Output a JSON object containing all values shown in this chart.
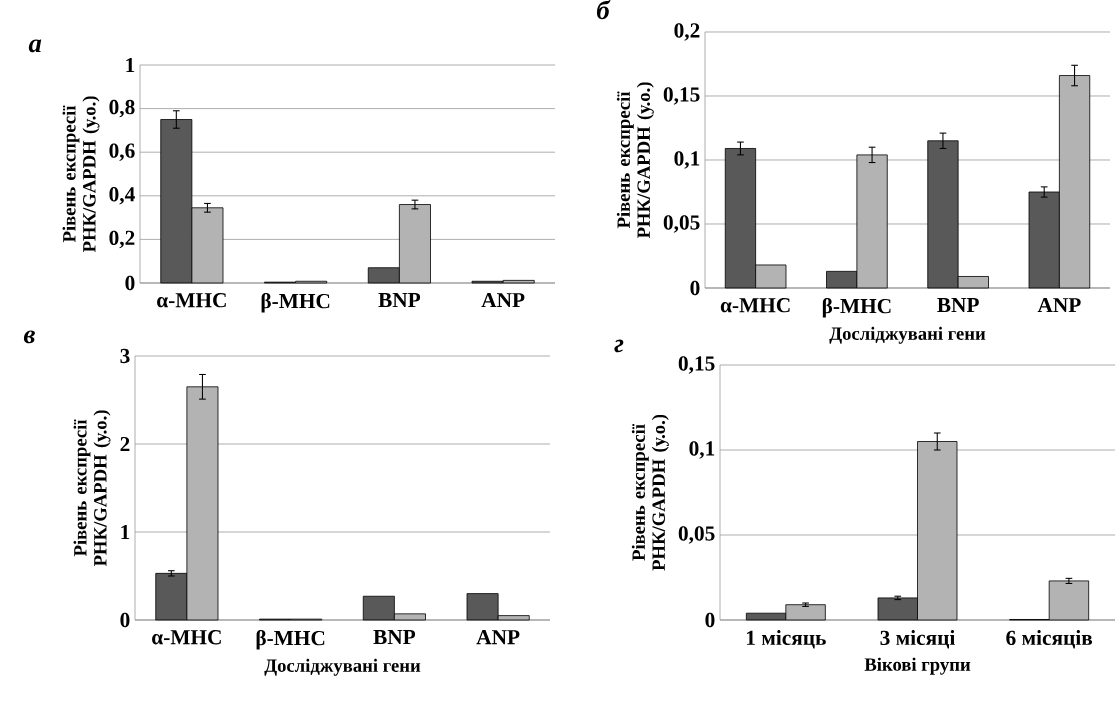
{
  "chart_data": [
    {
      "type": "bar",
      "title": "а",
      "ylabel": "Рівень експресії РНК/GAPDH (у.о.)",
      "categories": [
        "α-MHC",
        "β-MHC",
        "BNP",
        "ANP"
      ],
      "series": [
        {
          "color": "#595959",
          "values": [
            0.75,
            0.004,
            0.07,
            0.008
          ],
          "errors": [
            0.04,
            null,
            null,
            null
          ]
        },
        {
          "color": "#b3b3b3",
          "values": [
            0.345,
            0.008,
            0.36,
            0.012
          ],
          "errors": [
            0.02,
            null,
            0.02,
            null
          ]
        }
      ],
      "ylim": [
        0,
        1
      ],
      "yticks": [
        0,
        {
          "value": 0.2,
          "label": "0,2"
        },
        {
          "value": 0.4,
          "label": "0,4"
        },
        {
          "value": 0.6,
          "label": "0,6"
        },
        {
          "value": 0.8,
          "label": "0,8"
        },
        1
      ],
      "grid": "y"
    },
    {
      "type": "bar",
      "title": "б",
      "ylabel": "Рівень експресії РНК/GAPDH (у.о.)",
      "xlabel": "Досліджувані гени",
      "categories": [
        "α-MHC",
        "β-MHC",
        "BNP",
        "ANP"
      ],
      "series": [
        {
          "color": "#595959",
          "values": [
            0.109,
            0.013,
            0.115,
            0.075
          ],
          "errors": [
            0.005,
            null,
            0.006,
            0.004
          ]
        },
        {
          "color": "#b3b3b3",
          "values": [
            0.018,
            0.104,
            0.009,
            0.166
          ],
          "errors": [
            null,
            0.006,
            null,
            0.008
          ]
        }
      ],
      "ylim": [
        0,
        0.2
      ],
      "yticks": [
        0,
        {
          "value": 0.05,
          "label": "0,05"
        },
        {
          "value": 0.1,
          "label": "0,1"
        },
        {
          "value": 0.15,
          "label": "0,15"
        },
        {
          "value": 0.2,
          "label": "0,2"
        }
      ],
      "grid": "y"
    },
    {
      "type": "bar",
      "title": "в",
      "ylabel": "Рівень експресії РНК/GAPDH (у.о.)",
      "xlabel": "Досліджувані гени",
      "categories": [
        "α-MHC",
        "β-MHC",
        "BNP",
        "ANP"
      ],
      "series": [
        {
          "color": "#595959",
          "values": [
            0.53,
            0.01,
            0.27,
            0.3
          ],
          "errors": [
            0.03,
            null,
            null,
            null
          ]
        },
        {
          "color": "#b3b3b3",
          "values": [
            2.65,
            0.01,
            0.07,
            0.05
          ],
          "errors": [
            0.14,
            null,
            null,
            null
          ]
        }
      ],
      "ylim": [
        0,
        3
      ],
      "yticks": [
        0,
        1,
        2,
        3
      ],
      "grid": "y"
    },
    {
      "type": "bar",
      "title": "г",
      "ylabel": "Рівень експресії РНК/GAPDH (у.о.)",
      "xlabel": "Вікові групи",
      "categories": [
        "1 місяць",
        "3 місяці",
        "6 місяців"
      ],
      "series": [
        {
          "color": "#595959",
          "values": [
            0.004,
            0.013,
            0.0003
          ],
          "errors": [
            null,
            0.001,
            null
          ]
        },
        {
          "color": "#b3b3b3",
          "values": [
            0.009,
            0.105,
            0.023
          ],
          "errors": [
            0.001,
            0.005,
            0.0015
          ]
        }
      ],
      "ylim": [
        0,
        0.15
      ],
      "yticks": [
        0,
        {
          "value": 0.05,
          "label": "0,05"
        },
        {
          "value": 0.1,
          "label": "0,1"
        },
        {
          "value": 0.15,
          "label": "0,15"
        }
      ],
      "grid": "y"
    }
  ]
}
